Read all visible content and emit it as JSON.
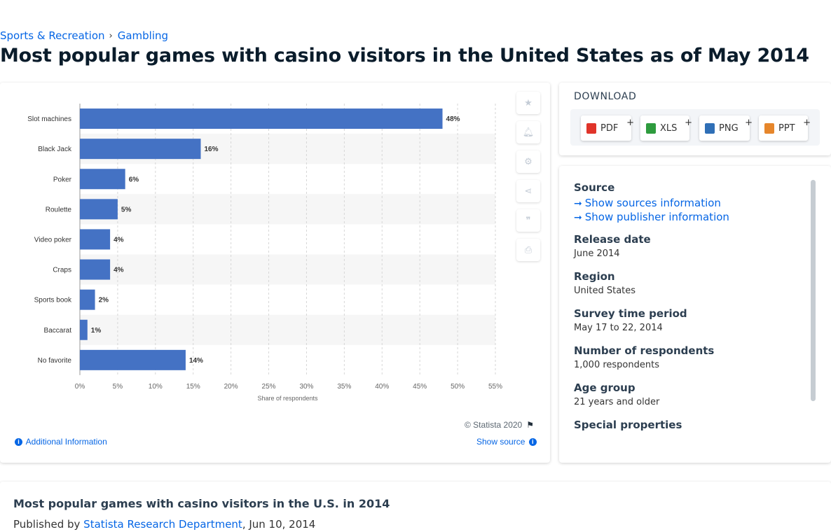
{
  "breadcrumb": {
    "items": [
      "Sports & Recreation",
      "Gambling"
    ],
    "separator": "›"
  },
  "page_title": "Most popular games with casino visitors in the United States as of May 2014",
  "chart_card": {
    "credit": "© Statista 2020",
    "additional_info": "Additional Information",
    "show_source": "Show source"
  },
  "tools": [
    "star-icon",
    "bell-icon",
    "gear-icon",
    "share-icon",
    "quote-icon",
    "print-icon"
  ],
  "download": {
    "title": "DOWNLOAD",
    "buttons": [
      {
        "label": "PDF",
        "plus": "+",
        "icon_color": "#e0342a"
      },
      {
        "label": "XLS",
        "plus": "+",
        "icon_color": "#2e9b3e"
      },
      {
        "label": "PNG",
        "plus": "+",
        "icon_color": "#2f6fb6"
      },
      {
        "label": "PPT",
        "plus": "+",
        "icon_color": "#e6862b"
      }
    ]
  },
  "meta": {
    "source_label": "Source",
    "show_sources": "Show sources information",
    "show_publisher": "Show publisher information",
    "release_label": "Release date",
    "release_value": "June 2014",
    "region_label": "Region",
    "region_value": "United States",
    "survey_label": "Survey time period",
    "survey_value": "May 17 to 22, 2014",
    "respondents_label": "Number of respondents",
    "respondents_value": "1,000 respondents",
    "age_label": "Age group",
    "age_value": "21 years and older",
    "special_label": "Special properties"
  },
  "bottom": {
    "title": "Most popular games with casino visitors in the U.S. in 2014",
    "published_prefix": "Published by",
    "author": "Statista Research Department",
    "date": ", Jun 10, 2014"
  },
  "colors": {
    "bar": "#4472c4",
    "accent": "#0666e5",
    "stripe": "#f6f6f6"
  },
  "chart_data": {
    "type": "bar",
    "orientation": "horizontal",
    "categories": [
      "Slot machines",
      "Black Jack",
      "Poker",
      "Roulette",
      "Video poker",
      "Craps",
      "Sports book",
      "Baccarat",
      "No favorite"
    ],
    "values": [
      48,
      16,
      6,
      5,
      4,
      4,
      2,
      1,
      14
    ],
    "value_labels": [
      "48%",
      "16%",
      "6%",
      "5%",
      "4%",
      "4%",
      "2%",
      "1%",
      "14%"
    ],
    "xlabel": "Share of respondents",
    "xlim": [
      0,
      55
    ],
    "xticks": [
      0,
      5,
      10,
      15,
      20,
      25,
      30,
      35,
      40,
      45,
      50,
      55
    ],
    "xtick_labels": [
      "0%",
      "5%",
      "10%",
      "15%",
      "20%",
      "25%",
      "30%",
      "35%",
      "40%",
      "45%",
      "50%",
      "55%"
    ],
    "grid": true
  }
}
